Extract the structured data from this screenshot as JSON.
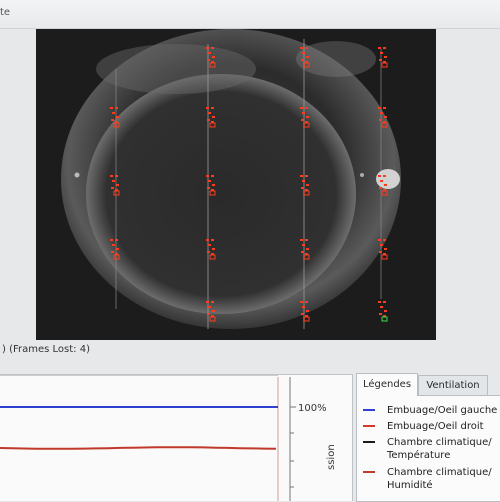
{
  "window": {
    "title_fragment": "te"
  },
  "video": {
    "status_text": ") (Frames Lost: 4)",
    "markers": [
      {
        "col": 1,
        "row": 0
      },
      {
        "col": 2,
        "row": 0
      },
      {
        "col": 3,
        "row": 0
      },
      {
        "col": 0,
        "row": 1
      },
      {
        "col": 1,
        "row": 1
      },
      {
        "col": 2,
        "row": 1
      },
      {
        "col": 3,
        "row": 1
      },
      {
        "col": 0,
        "row": 2
      },
      {
        "col": 1,
        "row": 2
      },
      {
        "col": 2,
        "row": 2
      },
      {
        "col": 3,
        "row": 2
      },
      {
        "col": 0,
        "row": 3
      },
      {
        "col": 1,
        "row": 3
      },
      {
        "col": 2,
        "row": 3
      },
      {
        "col": 3,
        "row": 3
      },
      {
        "col": 1,
        "row": 4
      },
      {
        "col": 2,
        "row": 4
      },
      {
        "col": 3,
        "row": 4,
        "highlight": true
      }
    ],
    "marker_color": "#ff3b1f",
    "highlight_color": "#3ddc3d"
  },
  "chart": {
    "percent_label": "100%",
    "axis_title_fragment": "ssion",
    "series": [
      {
        "name": "Embuage/Oeil gauche",
        "color": "#2f3fd0",
        "level": 1.0
      },
      {
        "name": "Embuage/Oeil droit",
        "color": "#c0392b",
        "level": 0.78
      }
    ]
  },
  "legend": {
    "tabs": [
      "Légendes",
      "Ventilation"
    ],
    "items": [
      {
        "label": "Embuage/Oeil gauche",
        "color": "#2f3fd0"
      },
      {
        "label": "Embuage/Oeil droit",
        "color": "#d23a2a"
      },
      {
        "label": "Chambre climatique/ Température",
        "color": "#1a1a1a"
      },
      {
        "label": "Chambre climatique/ Humidité",
        "color": "#c0392b"
      }
    ]
  }
}
